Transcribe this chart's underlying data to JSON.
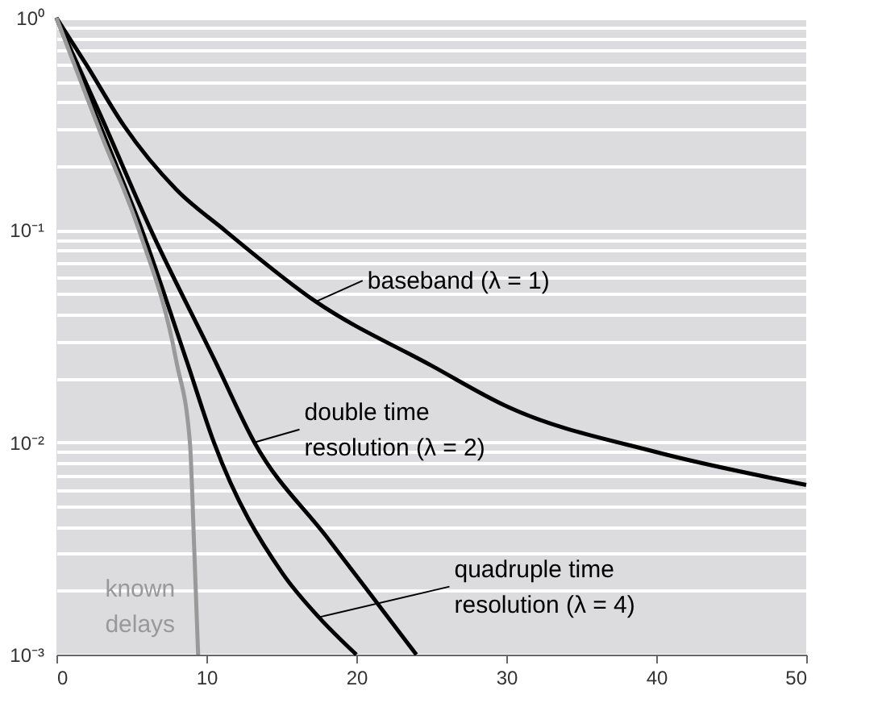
{
  "chart_data": {
    "type": "line",
    "log": "y",
    "grid": "y",
    "xlim": [
      0,
      50
    ],
    "ylim": [
      0.001,
      1
    ],
    "xticks": [
      0,
      10,
      20,
      30,
      40,
      50
    ],
    "yticks": [
      {
        "value": 0.001,
        "label": "10⁻³"
      },
      {
        "value": 0.002,
        "label": null
      },
      {
        "value": 0.003,
        "label": null
      },
      {
        "value": 0.004,
        "label": null
      },
      {
        "value": 0.005,
        "label": null
      },
      {
        "value": 0.006,
        "label": null
      },
      {
        "value": 0.007,
        "label": null
      },
      {
        "value": 0.008,
        "label": null
      },
      {
        "value": 0.009,
        "label": null
      },
      {
        "value": 0.01,
        "label": "10⁻²"
      },
      {
        "value": 0.02,
        "label": null
      },
      {
        "value": 0.03,
        "label": null
      },
      {
        "value": 0.04,
        "label": null
      },
      {
        "value": 0.05,
        "label": null
      },
      {
        "value": 0.06,
        "label": null
      },
      {
        "value": 0.07,
        "label": null
      },
      {
        "value": 0.08,
        "label": null
      },
      {
        "value": 0.09,
        "label": null
      },
      {
        "value": 0.1,
        "label": "10⁻¹"
      },
      {
        "value": 0.2,
        "label": null
      },
      {
        "value": 0.3,
        "label": null
      },
      {
        "value": 0.4,
        "label": null
      },
      {
        "value": 0.5,
        "label": null
      },
      {
        "value": 0.6,
        "label": null
      },
      {
        "value": 0.7,
        "label": null
      },
      {
        "value": 0.8,
        "label": null
      },
      {
        "value": 0.9,
        "label": null
      },
      {
        "value": 1,
        "label": "10⁰"
      }
    ],
    "series": [
      {
        "color": "#000000",
        "x": [
          0,
          2,
          4.5,
          8,
          11.2,
          17.3,
          25,
          30,
          40,
          50
        ],
        "values": [
          1,
          0.6,
          0.31,
          0.155,
          0.1,
          0.046,
          0.023,
          0.0148,
          0.009,
          0.0063
        ]
      },
      {
        "color": "#000000",
        "x": [
          0,
          3,
          6.3,
          10.6,
          13.2,
          18,
          21,
          24
        ],
        "values": [
          1,
          0.34,
          0.1,
          0.024,
          0.01,
          0.0036,
          0.0019,
          0.001
        ]
      },
      {
        "color": "#000000",
        "x": [
          0,
          3,
          5.7,
          8.7,
          10.5,
          15.1,
          17.5,
          20
        ],
        "values": [
          1,
          0.3,
          0.1,
          0.024,
          0.01,
          0.0024,
          0.0015,
          0.001
        ]
      },
      {
        "color": "#999999",
        "x": [
          0,
          3,
          5.5,
          8,
          8.9,
          9.2,
          9.45
        ],
        "values": [
          1,
          0.28,
          0.1,
          0.024,
          0.01,
          0.003,
          0.001
        ]
      }
    ],
    "annotations": [
      {
        "text": "baseband (λ = 1)",
        "x": 17.3,
        "y": 0.046
      },
      {
        "text": "double time\nresolution (λ = 2)",
        "x": 13.2,
        "y": 0.01
      },
      {
        "text": "quadruple time\nresolution  (λ = 4)",
        "x": 17.5,
        "y": 0.0015
      },
      {
        "text": "known\ndelays",
        "x": 9.2,
        "y": 0.003
      }
    ]
  }
}
